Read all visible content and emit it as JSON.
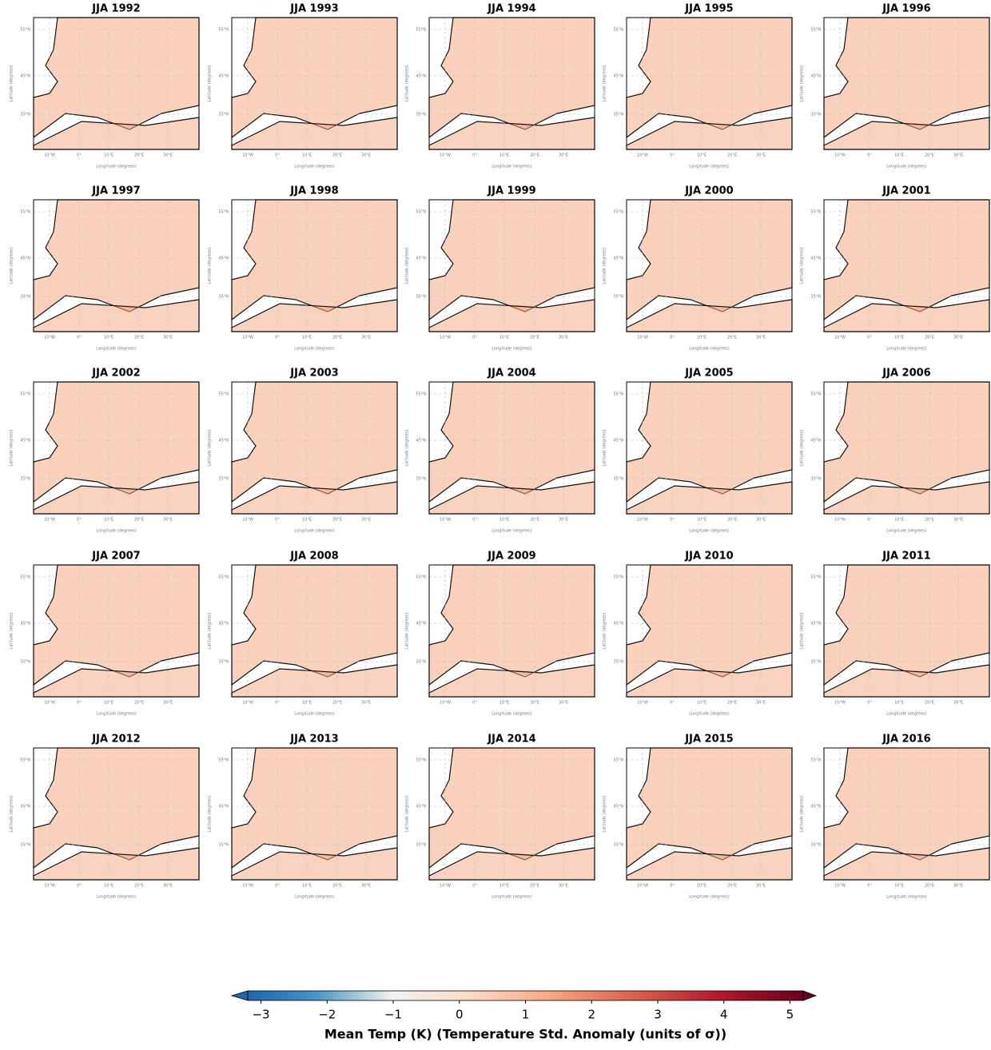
{
  "panels": [
    {
      "title": "JJA 1992"
    },
    {
      "title": "JJA 1993"
    },
    {
      "title": "JJA 1994"
    },
    {
      "title": "JJA 1995"
    },
    {
      "title": "JJA 1996"
    },
    {
      "title": "JJA 1997"
    },
    {
      "title": "JJA 1998"
    },
    {
      "title": "JJA 1999"
    },
    {
      "title": "JJA 2000"
    },
    {
      "title": "JJA 2001"
    },
    {
      "title": "JJA 2002"
    },
    {
      "title": "JJA 2003"
    },
    {
      "title": "JJA 2004"
    },
    {
      "title": "JJA 2005"
    },
    {
      "title": "JJA 2006"
    },
    {
      "title": "JJA 2007"
    },
    {
      "title": "JJA 2008"
    },
    {
      "title": "JJA 2009"
    },
    {
      "title": "JJA 2010"
    },
    {
      "title": "JJA 2011"
    },
    {
      "title": "JJA 2012"
    },
    {
      "title": "JJA 2013"
    },
    {
      "title": "JJA 2014"
    },
    {
      "title": "JJA 2015"
    },
    {
      "title": "JJA 2016"
    }
  ],
  "axes": {
    "x_label": "Longitude (degrees)",
    "y_label": "Latitude (degrees)",
    "xticks": [
      "10°W",
      "0°",
      "10°E",
      "20°E",
      "30°E"
    ],
    "yticks": [
      "55°N",
      "45°N",
      "35°N"
    ]
  },
  "colorbar": {
    "label": "Mean Temp (K) (Temperature Std. Anomaly (units of σ))",
    "lim": [
      -3.2,
      5.2
    ],
    "ticks": [
      {
        "value": -3,
        "label": "−3"
      },
      {
        "value": -2,
        "label": "−2"
      },
      {
        "value": -1,
        "label": "−1"
      },
      0,
      1,
      2,
      3,
      4,
      5
    ]
  }
}
